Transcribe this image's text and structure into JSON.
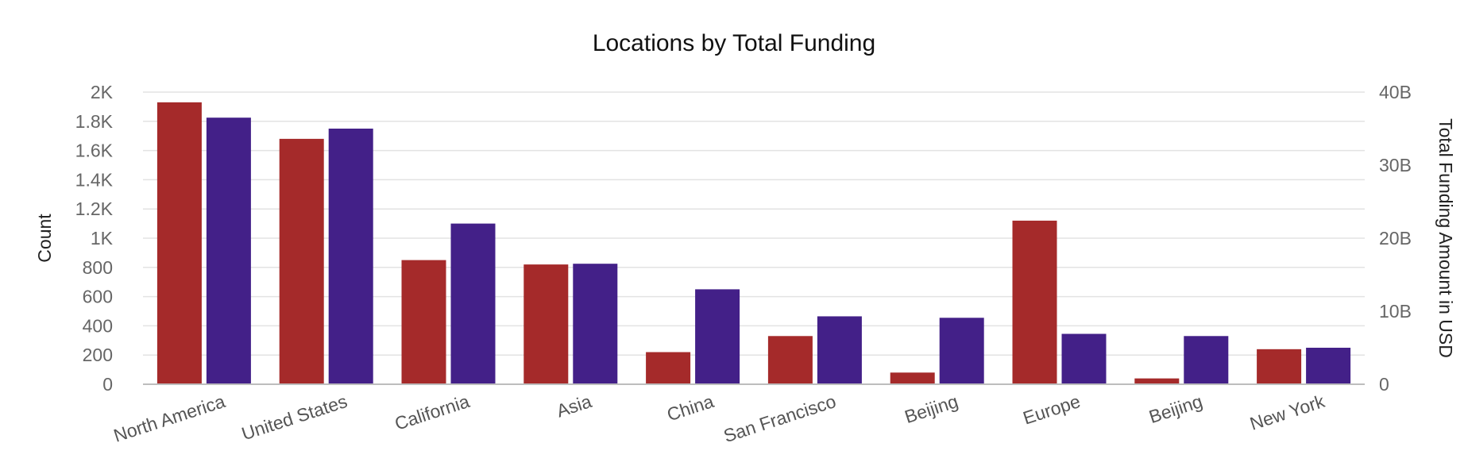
{
  "chart_data": {
    "type": "bar",
    "title": "Locations by Total Funding",
    "categories": [
      "North America",
      "United States",
      "California",
      "Asia",
      "China",
      "San Francisco",
      "Beijing",
      "Europe",
      "Beijing",
      "New York"
    ],
    "series": [
      {
        "axis": "left",
        "color": "#a52a2a",
        "values": [
          1930,
          1680,
          850,
          820,
          220,
          330,
          80,
          1120,
          40,
          240
        ]
      },
      {
        "axis": "right",
        "color": "#432088",
        "values": [
          36.5,
          35.0,
          22.0,
          16.5,
          13.0,
          9.3,
          9.1,
          6.9,
          6.6,
          5.0
        ]
      }
    ],
    "y_left": {
      "label": "Count",
      "lim": [
        0,
        2000
      ],
      "ticks": [
        0,
        200,
        400,
        600,
        800,
        1000,
        1200,
        1400,
        1600,
        1800,
        2000
      ],
      "tick_labels": [
        "0",
        "200",
        "400",
        "600",
        "800",
        "1K",
        "1.2K",
        "1.4K",
        "1.6K",
        "1.8K",
        "2K"
      ]
    },
    "y_right": {
      "label": "Total Funding Amount in USD",
      "unit": "B",
      "lim": [
        0,
        40
      ],
      "ticks": [
        0,
        10,
        20,
        30,
        40
      ],
      "tick_labels": [
        "0",
        "10B",
        "20B",
        "30B",
        "40B"
      ]
    },
    "grid": true,
    "legend": "none"
  }
}
